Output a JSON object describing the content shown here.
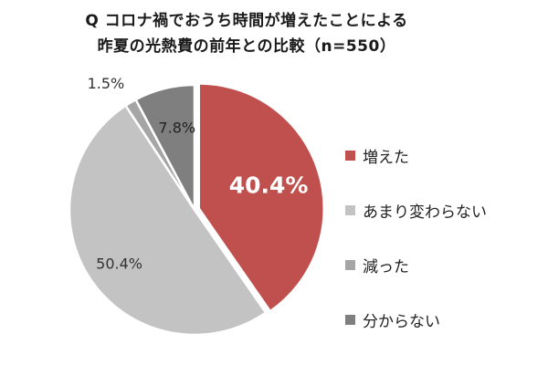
{
  "chart_data": {
    "type": "pie",
    "title_lines": [
      "Q コロナ禍でおうち時間が増えたことによる",
      "昨夏の光熱費の前年との比較（n=550）"
    ],
    "slices": [
      {
        "label": "増えた",
        "value": 40.4,
        "value_label": "40.4%",
        "color": "#c0504d"
      },
      {
        "label": "あまり変わらない",
        "value": 50.4,
        "value_label": "50.4%",
        "color": "#c3c3c3"
      },
      {
        "label": "減った",
        "value": 1.5,
        "value_label": "1.5%",
        "color": "#a5a5a5"
      },
      {
        "label": "分からない",
        "value": 7.8,
        "value_label": "7.8%",
        "color": "#7f7f7f"
      }
    ],
    "legend_position": "right",
    "start_angle": "12 o'clock",
    "direction": "clockwise"
  }
}
